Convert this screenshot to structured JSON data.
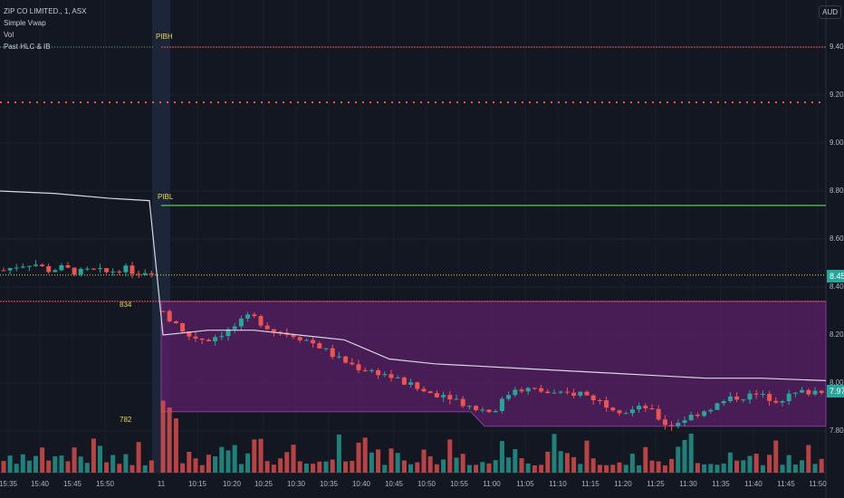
{
  "legend": {
    "symbol": "ZIP CO LIMITED., 1, ASX",
    "indicators": [
      "Simple Vwap",
      "Vol",
      "Past HLC & IB"
    ]
  },
  "currency": "AUD",
  "price_ticks": [
    "9.40",
    "9.20",
    "9.00",
    "8.80",
    "8.60",
    "8.40",
    "8.20",
    "8.00",
    "7.80"
  ],
  "time_ticks": [
    "15:35",
    "15:40",
    "15:45",
    "15:50",
    "11",
    "10:15",
    "10:20",
    "10:25",
    "10:30",
    "10:35",
    "10:40",
    "10:45",
    "10:50",
    "10:55",
    "11:00",
    "11:05",
    "11:10",
    "11:15",
    "11:20",
    "11:25",
    "11:30",
    "11:35",
    "11:40",
    "11:45",
    "11:50"
  ],
  "labels": {
    "pibh": "PIBH",
    "pibl": "PIBL",
    "ib_high": "834",
    "ib_low": "782"
  },
  "last_price_badge": "8.45",
  "current_price_badge": "7.97",
  "colors": {
    "up": "#26a69a",
    "down": "#ef5350",
    "vwap": "#d8d8e0",
    "ib_fill": "#5b1f66",
    "green": "#4caf50",
    "yellow": "#e6d94a",
    "red": "#ef5350"
  },
  "levels": {
    "pibh": 9.4,
    "prior_close": 9.17,
    "pibl": 8.74,
    "last_close": 8.45,
    "ib_high": 8.34,
    "ib_low_early": 7.88,
    "ib_low_late": 7.82
  },
  "series": {
    "pre_close_keypoints": [
      8.47,
      8.49,
      8.5,
      8.47,
      8.48,
      8.46,
      8.47,
      8.46,
      8.48,
      8.46,
      8.47
    ],
    "session_close_keypoints": [
      8.3,
      8.2,
      8.18,
      8.22,
      8.28,
      8.22,
      8.2,
      8.16,
      8.1,
      8.06,
      8.04,
      8.0,
      7.96,
      7.95,
      7.9,
      7.88,
      7.98,
      7.97,
      7.95,
      7.96,
      7.92,
      7.88,
      7.9,
      7.82,
      7.86,
      7.9,
      7.94,
      7.95,
      7.93,
      7.96,
      7.97
    ],
    "vwap_keypoints": [
      8.8,
      8.79,
      8.77,
      8.76,
      8.2,
      8.22,
      8.22,
      8.2,
      8.18,
      8.1,
      8.08,
      8.07,
      8.06,
      8.05,
      8.04,
      8.03,
      8.02,
      8.02,
      8.01
    ]
  }
}
